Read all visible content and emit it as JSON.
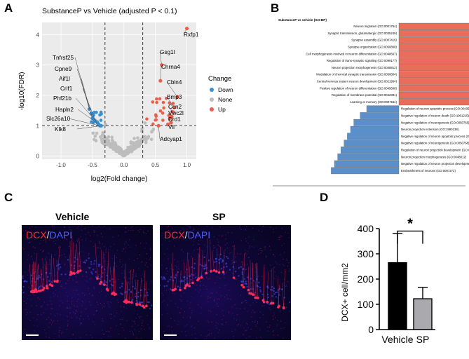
{
  "panels": {
    "A": "A",
    "B": "B",
    "C": "C",
    "D": "D"
  },
  "volcano": {
    "title": "SubstanceP vs Vehicle (adjusted P < 0.1)",
    "xlabel": "log2(Fold change)",
    "ylabel": "-log10(FDR)",
    "xticks": [
      "-1.0",
      "-0.5",
      "0.0",
      "0.5",
      "1.0"
    ],
    "yticks": [
      "0",
      "1",
      "2",
      "3",
      "4"
    ],
    "legend_title": "Change",
    "legend": [
      {
        "label": "Down",
        "color": "#3b8fd0"
      },
      {
        "label": "None",
        "color": "#bdbdbd"
      },
      {
        "label": "Up",
        "color": "#e8604c"
      }
    ],
    "gene_labels": [
      "Rxfp1",
      "Gsg1l",
      "Chrna4",
      "Cbln4",
      "Bmp3",
      "Ccn2",
      "Vwc2l",
      "Drd1",
      "Vil",
      "Adcyap1",
      "Tnfrsf25",
      "Cpne9",
      "Aif1l",
      "Crif1",
      "Phf21b",
      "Hapln2",
      "Slc26a10",
      "Klk8"
    ]
  },
  "chart_data": [
    {
      "type": "scatter",
      "title": "SubstanceP vs Vehicle (adjusted P < 0.1)",
      "xlabel": "log2(Fold change)",
      "ylabel": "-log10(FDR)",
      "xlim": [
        -1.3,
        1.15
      ],
      "ylim": [
        -0.1,
        4.4
      ],
      "thresholds": {
        "x": [
          -0.3,
          0.3
        ],
        "y": 1
      },
      "labeled_points": [
        {
          "gene": "Rxfp1",
          "x": 1.0,
          "y": 4.2,
          "change": "Up"
        },
        {
          "gene": "Gsg1l",
          "x": 0.6,
          "y": 3.0,
          "change": "Up"
        },
        {
          "gene": "Chrna4",
          "x": 0.58,
          "y": 2.48,
          "change": "Up"
        },
        {
          "gene": "Cbln4",
          "x": 0.85,
          "y": 1.95,
          "change": "Up"
        },
        {
          "gene": "Bmp3",
          "x": 0.8,
          "y": 1.6,
          "change": "Up"
        },
        {
          "gene": "Ccn2",
          "x": 0.78,
          "y": 1.45,
          "change": "Up"
        },
        {
          "gene": "Vwc2l",
          "x": 0.76,
          "y": 1.3,
          "change": "Up"
        },
        {
          "gene": "Drd1",
          "x": 0.75,
          "y": 1.1,
          "change": "Up"
        },
        {
          "gene": "Vil",
          "x": 0.7,
          "y": 1.05,
          "change": "Up"
        },
        {
          "gene": "Adcyap1",
          "x": 0.55,
          "y": 1.0,
          "change": "Up"
        },
        {
          "gene": "Tnfrsf25",
          "x": -0.55,
          "y": 1.55,
          "change": "Down"
        },
        {
          "gene": "Cpne9",
          "x": -0.52,
          "y": 1.4,
          "change": "Down"
        },
        {
          "gene": "Aif1l",
          "x": -0.5,
          "y": 1.25,
          "change": "Down"
        },
        {
          "gene": "Crif1",
          "x": -0.45,
          "y": 1.15,
          "change": "Down"
        },
        {
          "gene": "Phf21b",
          "x": -0.42,
          "y": 1.1,
          "change": "Down"
        },
        {
          "gene": "Hapln2",
          "x": -0.4,
          "y": 1.05,
          "change": "Down"
        },
        {
          "gene": "Slc26a10",
          "x": -0.38,
          "y": 1.0,
          "change": "Down"
        },
        {
          "gene": "Klk8",
          "x": -0.36,
          "y": 1.0,
          "change": "Down"
        }
      ]
    },
    {
      "type": "bar",
      "title": "SubstanceP vs vehicle (GO:BP)",
      "orientation": "horizontal",
      "categories": [
        "Neuron migration (GO:0001764)",
        "Synaptic transmission, glutamatergic (GO:0035249)",
        "Synapse assembly (GO:0007416)",
        "Synapse organization (GO:0050808)",
        "Cell morphogenesis involved in neuron differentiation (GO:0048667)",
        "Regulation of trans-synaptic signaling (GO:0099177)",
        "Neuron projection morphogenesis (GO:0048812)",
        "Modulation of chemical synaptic transmission (GO:0050804)",
        "Central nervous system neuron development (GO:0021954)",
        "Positive regulation of neuron differentiation (GO:0045666)",
        "Regulation of membrane potential (GO:0042391)",
        "Learning or memory (GO:0007611)",
        "Regulation of neuron apoptotic process (GO:0043523)",
        "Negative regulation of neuron death (GO:1901215)",
        "Negative regulation of neurogenesis (GO:0050768)",
        "Neuron projection extension (GO:1990138)",
        "Negative regulation of neuron apoptotic process (GO:0043524)",
        "Negative regulation of neurogenesis (GO:0050768)",
        "Regulation of neuron projection development (GO:0010975)",
        "Neuron projection morphogenesis (GO:0048812)",
        "Negative regulation of neuron projection development (GO:0010977)",
        "Ensheathment of neurons (GO:0007272)"
      ],
      "values": [
        5.4,
        5.3,
        4.6,
        4.4,
        4.2,
        4.1,
        4.0,
        4.0,
        3.9,
        3.8,
        3.7,
        3.2,
        -1.0,
        -1.2,
        -1.4,
        -1.5,
        -1.6,
        -1.7,
        -1.8,
        -1.9,
        -2.0,
        -2.1
      ],
      "colors": {
        "up": "#ea6d5b",
        "down": "#5b8fc9"
      }
    },
    {
      "type": "bar",
      "categories": [
        "Vehicle",
        "SP"
      ],
      "values": [
        265,
        122
      ],
      "errors": [
        115,
        45
      ],
      "ylabel": "DCX+ cell/mm2",
      "ylim": [
        0,
        400
      ],
      "yticks": [
        "0",
        "100",
        "200",
        "300",
        "400"
      ],
      "colors": [
        "#000000",
        "#a9a9ae"
      ],
      "significance": "*"
    }
  ],
  "micrographs": {
    "vehicle_title": "Vehicle",
    "sp_title": "SP",
    "dcx": "DCX",
    "slash": "/",
    "dapi": "DAPI"
  }
}
